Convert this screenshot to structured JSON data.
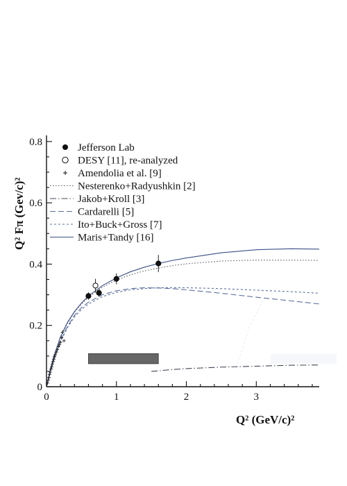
{
  "chart_data": {
    "type": "line",
    "xlabel": "Q² (GeV/c)²",
    "ylabel": "Q² Fπ (Gev/c)²",
    "xlim": [
      0,
      3.9
    ],
    "ylim": [
      0,
      0.82
    ],
    "x_ticks": [
      0,
      1,
      2,
      3
    ],
    "y_ticks": [
      0,
      0.2,
      0.4,
      0.6,
      0.8
    ],
    "x_tick_labels": [
      "0",
      "1",
      "2",
      "3"
    ],
    "y_tick_labels": [
      "0",
      "0.2",
      "0.4",
      "0.6",
      "0.8"
    ],
    "legend_position": "top-left",
    "series": [
      {
        "name": "Jefferson Lab",
        "kind": "points-filled",
        "points": [
          {
            "x": 0.6,
            "y": 0.296,
            "err": 0.012
          },
          {
            "x": 0.75,
            "y": 0.306,
            "err": 0.012
          },
          {
            "x": 1.0,
            "y": 0.352,
            "err": 0.018
          },
          {
            "x": 1.6,
            "y": 0.402,
            "err": 0.028
          }
        ]
      },
      {
        "name": "DESY [11], re-analyzed",
        "kind": "points-open",
        "points": [
          {
            "x": 0.7,
            "y": 0.33,
            "err": 0.022
          }
        ]
      },
      {
        "name": "Amendolia et al. [9]",
        "kind": "points-cross",
        "points": [
          {
            "x": 0.015,
            "y": 0.012
          },
          {
            "x": 0.025,
            "y": 0.022
          },
          {
            "x": 0.035,
            "y": 0.03
          },
          {
            "x": 0.045,
            "y": 0.04
          },
          {
            "x": 0.055,
            "y": 0.048
          },
          {
            "x": 0.065,
            "y": 0.058
          },
          {
            "x": 0.075,
            "y": 0.065
          },
          {
            "x": 0.085,
            "y": 0.074
          },
          {
            "x": 0.095,
            "y": 0.082
          },
          {
            "x": 0.105,
            "y": 0.09
          },
          {
            "x": 0.115,
            "y": 0.098
          },
          {
            "x": 0.125,
            "y": 0.104
          },
          {
            "x": 0.14,
            "y": 0.113
          },
          {
            "x": 0.155,
            "y": 0.121
          },
          {
            "x": 0.17,
            "y": 0.13
          },
          {
            "x": 0.185,
            "y": 0.137
          },
          {
            "x": 0.2,
            "y": 0.145
          },
          {
            "x": 0.215,
            "y": 0.16
          },
          {
            "x": 0.23,
            "y": 0.178
          },
          {
            "x": 0.25,
            "y": 0.15
          }
        ]
      },
      {
        "name": "Nesterenko+Radyushkin [2]",
        "kind": "line",
        "dash": "1.5,2.5",
        "color": "#555566",
        "x": [
          0,
          0.05,
          0.1,
          0.2,
          0.3,
          0.4,
          0.5,
          0.6,
          0.8,
          1.0,
          1.2,
          1.4,
          1.6,
          1.8,
          2.0,
          2.5,
          3.0,
          3.5,
          3.9
        ],
        "y": [
          0,
          0.05,
          0.093,
          0.16,
          0.207,
          0.243,
          0.27,
          0.292,
          0.325,
          0.348,
          0.365,
          0.378,
          0.387,
          0.395,
          0.401,
          0.41,
          0.413,
          0.413,
          0.412
        ]
      },
      {
        "name": "Jakob+Kroll [3]",
        "kind": "line",
        "dash": "9,3,1.5,3",
        "color": "#444455",
        "x": [
          1.5,
          1.8,
          2.0,
          2.5,
          3.0,
          3.5,
          3.9
        ],
        "y": [
          0.05,
          0.056,
          0.059,
          0.064,
          0.067,
          0.07,
          0.071
        ]
      },
      {
        "name": "Cardarelli [5]",
        "kind": "line",
        "dash": "8,4",
        "color": "#5a6f9a",
        "x": [
          0,
          0.05,
          0.1,
          0.2,
          0.3,
          0.4,
          0.5,
          0.6,
          0.8,
          1.0,
          1.2,
          1.4,
          1.6,
          1.8,
          2.0,
          2.5,
          3.0,
          3.5,
          3.9
        ],
        "y": [
          0,
          0.045,
          0.085,
          0.15,
          0.197,
          0.233,
          0.258,
          0.276,
          0.3,
          0.313,
          0.32,
          0.323,
          0.322,
          0.32,
          0.316,
          0.305,
          0.292,
          0.28,
          0.27
        ]
      },
      {
        "name": "Ito+Buck+Gross [7]",
        "kind": "line",
        "dash": "3,3",
        "color": "#5a6f9a",
        "x": [
          0,
          0.05,
          0.1,
          0.2,
          0.3,
          0.4,
          0.5,
          0.6,
          0.8,
          1.0,
          1.2,
          1.4,
          1.6,
          1.8,
          2.0,
          2.5,
          3.0,
          3.5,
          3.9
        ],
        "y": [
          0,
          0.044,
          0.083,
          0.147,
          0.193,
          0.228,
          0.252,
          0.27,
          0.294,
          0.308,
          0.316,
          0.32,
          0.323,
          0.323,
          0.323,
          0.32,
          0.315,
          0.31,
          0.305
        ]
      },
      {
        "name": "Maris+Tandy [16]",
        "kind": "line",
        "dash": "",
        "color": "#3a4f86",
        "x": [
          0,
          0.05,
          0.1,
          0.2,
          0.3,
          0.4,
          0.5,
          0.6,
          0.8,
          1.0,
          1.2,
          1.4,
          1.6,
          1.8,
          2.0,
          2.5,
          3.0,
          3.5,
          3.9
        ],
        "y": [
          0,
          0.052,
          0.095,
          0.163,
          0.21,
          0.245,
          0.273,
          0.296,
          0.33,
          0.355,
          0.375,
          0.39,
          0.402,
          0.412,
          0.42,
          0.437,
          0.447,
          0.45,
          0.449
        ]
      }
    ],
    "boxes": [
      {
        "x0": 0.6,
        "x1": 1.6,
        "y0": 0.075,
        "y1": 0.108,
        "fill": "#666666"
      }
    ]
  }
}
